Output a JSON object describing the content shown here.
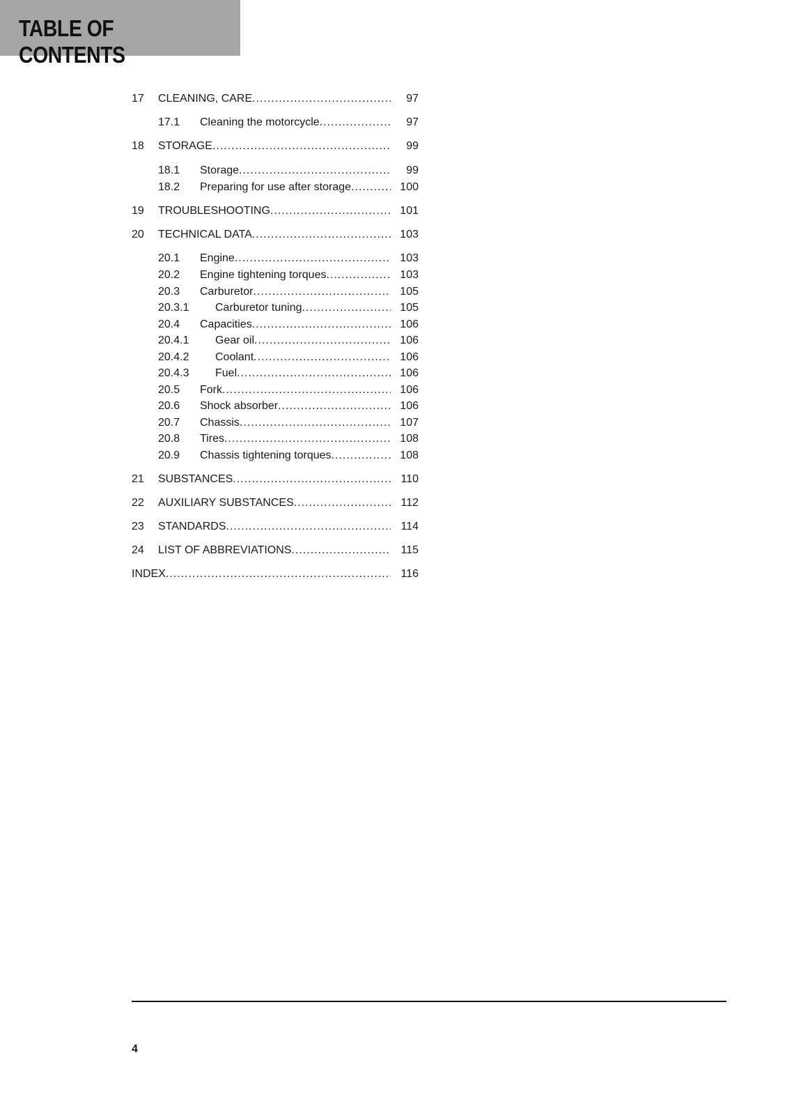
{
  "header": {
    "title": "TABLE OF CONTENTS"
  },
  "toc": [
    {
      "level": 1,
      "num": "17",
      "title": "CLEANING, CARE",
      "page": "97"
    },
    {
      "level": 2,
      "num": "17.1",
      "title": "Cleaning the motorcycle",
      "page": "97"
    },
    {
      "level": 1,
      "num": "18",
      "title": "STORAGE",
      "page": "99"
    },
    {
      "level": 2,
      "num": "18.1",
      "title": "Storage",
      "page": "99"
    },
    {
      "level": 2,
      "num": "18.2",
      "title": "Preparing for use after storage",
      "page": "100"
    },
    {
      "level": 1,
      "num": "19",
      "title": "TROUBLESHOOTING",
      "page": "101"
    },
    {
      "level": 1,
      "num": "20",
      "title": "TECHNICAL DATA",
      "page": "103"
    },
    {
      "level": 2,
      "num": "20.1",
      "title": "Engine",
      "page": "103"
    },
    {
      "level": 2,
      "num": "20.2",
      "title": "Engine tightening torques",
      "page": "103"
    },
    {
      "level": 2,
      "num": "20.3",
      "title": "Carburetor",
      "page": "105"
    },
    {
      "level": 3,
      "num": "20.3.1",
      "title": "Carburetor tuning",
      "page": "105"
    },
    {
      "level": 2,
      "num": "20.4",
      "title": "Capacities",
      "page": "106"
    },
    {
      "level": 3,
      "num": "20.4.1",
      "title": "Gear oil",
      "page": "106"
    },
    {
      "level": 3,
      "num": "20.4.2",
      "title": "Coolant",
      "page": "106"
    },
    {
      "level": 3,
      "num": "20.4.3",
      "title": "Fuel",
      "page": "106"
    },
    {
      "level": 2,
      "num": "20.5",
      "title": "Fork",
      "page": "106"
    },
    {
      "level": 2,
      "num": "20.6",
      "title": "Shock absorber",
      "page": "106"
    },
    {
      "level": 2,
      "num": "20.7",
      "title": "Chassis",
      "page": "107"
    },
    {
      "level": 2,
      "num": "20.8",
      "title": "Tires",
      "page": "108"
    },
    {
      "level": 2,
      "num": "20.9",
      "title": "Chassis tightening torques",
      "page": "108"
    },
    {
      "level": 1,
      "num": "21",
      "title": "SUBSTANCES",
      "page": "110"
    },
    {
      "level": 1,
      "num": "22",
      "title": "AUXILIARY SUBSTANCES",
      "page": "112"
    },
    {
      "level": 1,
      "num": "23",
      "title": "STANDARDS",
      "page": "114"
    },
    {
      "level": 1,
      "num": "24",
      "title": "LIST OF ABBREVIATIONS",
      "page": "115"
    },
    {
      "level": 0,
      "num": "",
      "title": "INDEX",
      "page": "116"
    }
  ],
  "footer": {
    "page_number": "4"
  }
}
